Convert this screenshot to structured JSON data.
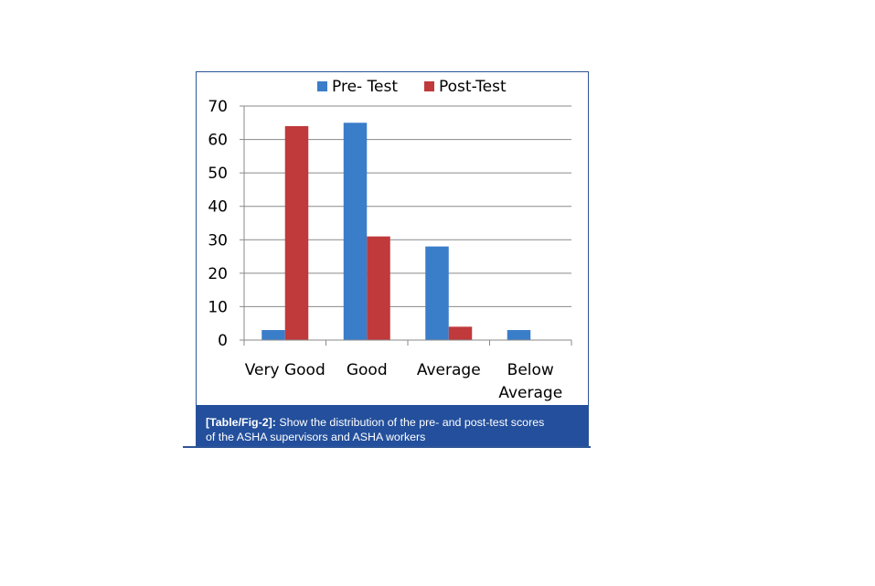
{
  "chart_data": {
    "type": "bar",
    "categories": [
      "Very Good",
      "Good",
      "Average",
      "Below Average"
    ],
    "category_lines": [
      [
        "Very Good"
      ],
      [
        "Good"
      ],
      [
        "Average"
      ],
      [
        "Below",
        "Average"
      ]
    ],
    "series": [
      {
        "name": "Pre- Test",
        "color": "#3a7dc9",
        "values": [
          3,
          65,
          28,
          3
        ]
      },
      {
        "name": "Post-Test",
        "color": "#c0393b",
        "values": [
          64,
          31,
          4,
          0
        ]
      }
    ],
    "ylim": [
      0,
      70
    ],
    "yticks": [
      0,
      10,
      20,
      30,
      40,
      50,
      60,
      70
    ],
    "grid": true,
    "legend": "top"
  },
  "caption": {
    "label": "[Table/Fig-2]:",
    "line1": " Show the distribution of the pre- and post-test scores",
    "line2": "of the ASHA supervisors and ASHA workers"
  },
  "colors": {
    "frame": "#2e5597",
    "caption_bg": "#234f9c",
    "grid": "#8a8a8a"
  }
}
